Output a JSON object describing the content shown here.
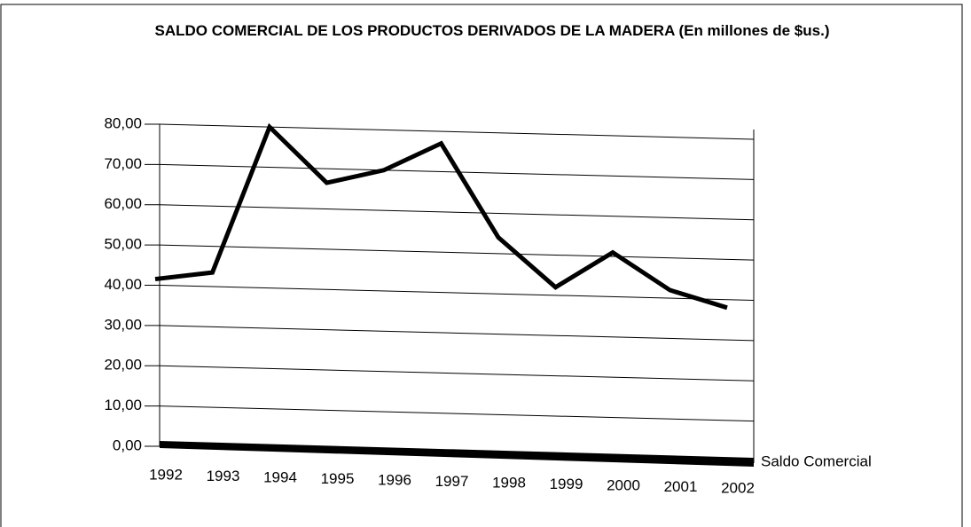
{
  "chart_data": {
    "type": "line",
    "title": "SALDO COMERCIAL DE LOS PRODUCTOS DERIVADOS DE LA MADERA (En millones de $us.)",
    "categories": [
      "1992",
      "1993",
      "1994",
      "1995",
      "1996",
      "1997",
      "1998",
      "1999",
      "2000",
      "2001",
      "2002"
    ],
    "series": [
      {
        "name": "Saldo Comercial",
        "color": "#000000",
        "values": [
          41.5,
          43.5,
          80,
          66.5,
          70,
          77,
          54,
          42,
          51,
          42,
          38
        ]
      }
    ],
    "ylim": [
      0,
      80
    ],
    "yticks": [
      {
        "value": 0,
        "label": "0,00"
      },
      {
        "value": 10,
        "label": "10,00"
      },
      {
        "value": 20,
        "label": "20,00"
      },
      {
        "value": 30,
        "label": "30,00"
      },
      {
        "value": 40,
        "label": "40,00"
      },
      {
        "value": 50,
        "label": "50,00"
      },
      {
        "value": 60,
        "label": "60,00"
      },
      {
        "value": 70,
        "label": "70,00"
      },
      {
        "value": 80,
        "label": "80,00"
      }
    ],
    "grid": true
  }
}
